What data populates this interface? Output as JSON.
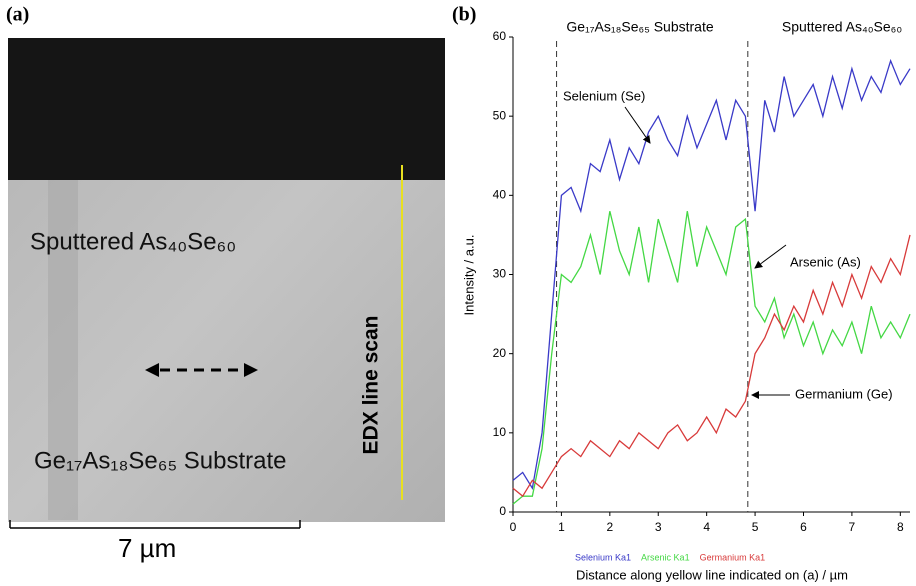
{
  "panel_a": {
    "label": "(a)",
    "top_label": "Sputtered As₄₀Se₆₀",
    "bottom_label": "Ge₁₇As₁₈Se₆₅ Substrate",
    "scan_label": "EDX line scan",
    "scale_label": "7 µm"
  },
  "chart_data": {
    "type": "line",
    "panel_label": "(b)",
    "region_labels": [
      "Ge₁₇As₁₈Se₆₅ Substrate",
      "Sputtered As₄₀Se₆₀"
    ],
    "boundaries": [
      0.9,
      4.85
    ],
    "annotations": [
      "Selenium (Se)",
      "Arsenic (As)",
      "Germanium (Ge)"
    ],
    "x_label": "Distance along yellow line indicated on (a) / µm",
    "y_label": "Intensity / a.u.",
    "x": [
      0,
      0.2,
      0.4,
      0.6,
      0.8,
      1.0,
      1.2,
      1.4,
      1.6,
      1.8,
      2.0,
      2.2,
      2.4,
      2.6,
      2.8,
      3.0,
      3.2,
      3.4,
      3.6,
      3.8,
      4.0,
      4.2,
      4.4,
      4.6,
      4.8,
      5.0,
      5.2,
      5.4,
      5.6,
      5.8,
      6.0,
      6.2,
      6.4,
      6.6,
      6.8,
      7.0,
      7.2,
      7.4,
      7.6,
      7.8,
      8.0,
      8.2
    ],
    "series": [
      {
        "name": "Selenium Ka1",
        "color": "#3a3ac8",
        "values": [
          4,
          5,
          3,
          10,
          25,
          40,
          41,
          38,
          44,
          43,
          47,
          42,
          46,
          44,
          48,
          50,
          47,
          45,
          50,
          46,
          49,
          52,
          47,
          52,
          50,
          38,
          52,
          48,
          55,
          50,
          52,
          54,
          50,
          55,
          51,
          56,
          52,
          55,
          53,
          57,
          54,
          56
        ]
      },
      {
        "name": "Arsenic Ka1",
        "color": "#44d844",
        "values": [
          1,
          2,
          2,
          8,
          20,
          30,
          29,
          31,
          35,
          30,
          38,
          33,
          30,
          36,
          29,
          37,
          33,
          29,
          38,
          31,
          36,
          33,
          30,
          36,
          37,
          26,
          24,
          27,
          22,
          25,
          21,
          24,
          20,
          23,
          21,
          24,
          20,
          26,
          22,
          24,
          22,
          25
        ]
      },
      {
        "name": "Germanium Ka1",
        "color": "#d83a3a",
        "values": [
          3,
          2,
          4,
          3,
          5,
          7,
          8,
          7,
          9,
          8,
          7,
          9,
          8,
          10,
          9,
          8,
          10,
          11,
          9,
          10,
          12,
          10,
          13,
          12,
          14,
          20,
          22,
          25,
          23,
          26,
          24,
          28,
          25,
          29,
          26,
          30,
          27,
          31,
          29,
          32,
          30,
          35
        ]
      }
    ],
    "xlim": [
      0,
      8.2
    ],
    "xticks": [
      0,
      1,
      2,
      3,
      4,
      5,
      6,
      7,
      8
    ],
    "ylim": [
      0,
      60
    ],
    "yticks": [
      0,
      10,
      20,
      30,
      40,
      50,
      60
    ]
  }
}
